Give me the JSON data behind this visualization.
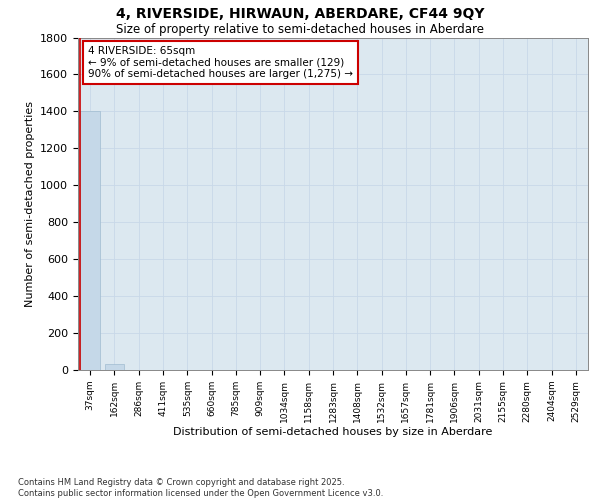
{
  "title": "4, RIVERSIDE, HIRWAUN, ABERDARE, CF44 9QY",
  "subtitle": "Size of property relative to semi-detached houses in Aberdare",
  "xlabel": "Distribution of semi-detached houses by size in Aberdare",
  "ylabel": "Number of semi-detached properties",
  "annotation_title": "4 RIVERSIDE: 65sqm",
  "annotation_line1": "← 9% of semi-detached houses are smaller (129)",
  "annotation_line2": "90% of semi-detached houses are larger (1,275) →",
  "footer_line1": "Contains HM Land Registry data © Crown copyright and database right 2025.",
  "footer_line2": "Contains public sector information licensed under the Open Government Licence v3.0.",
  "categories": [
    "37sqm",
    "162sqm",
    "286sqm",
    "411sqm",
    "535sqm",
    "660sqm",
    "785sqm",
    "909sqm",
    "1034sqm",
    "1158sqm",
    "1283sqm",
    "1408sqm",
    "1532sqm",
    "1657sqm",
    "1781sqm",
    "1906sqm",
    "2031sqm",
    "2155sqm",
    "2280sqm",
    "2404sqm",
    "2529sqm"
  ],
  "values": [
    1400,
    30,
    0,
    0,
    0,
    0,
    0,
    0,
    0,
    0,
    0,
    0,
    0,
    0,
    0,
    0,
    0,
    0,
    0,
    0,
    0
  ],
  "bar_color": "#c5d8e8",
  "bar_edge_color": "#a0bcd0",
  "annotation_box_color": "#cc0000",
  "annotation_marker_color": "#cc0000",
  "grid_color": "#c8d8e8",
  "plot_bg_color": "#dce8f0",
  "fig_bg_color": "#ffffff",
  "ylim": [
    0,
    1800
  ],
  "yticks": [
    0,
    200,
    400,
    600,
    800,
    1000,
    1200,
    1400,
    1600,
    1800
  ],
  "property_bar_index": 0
}
